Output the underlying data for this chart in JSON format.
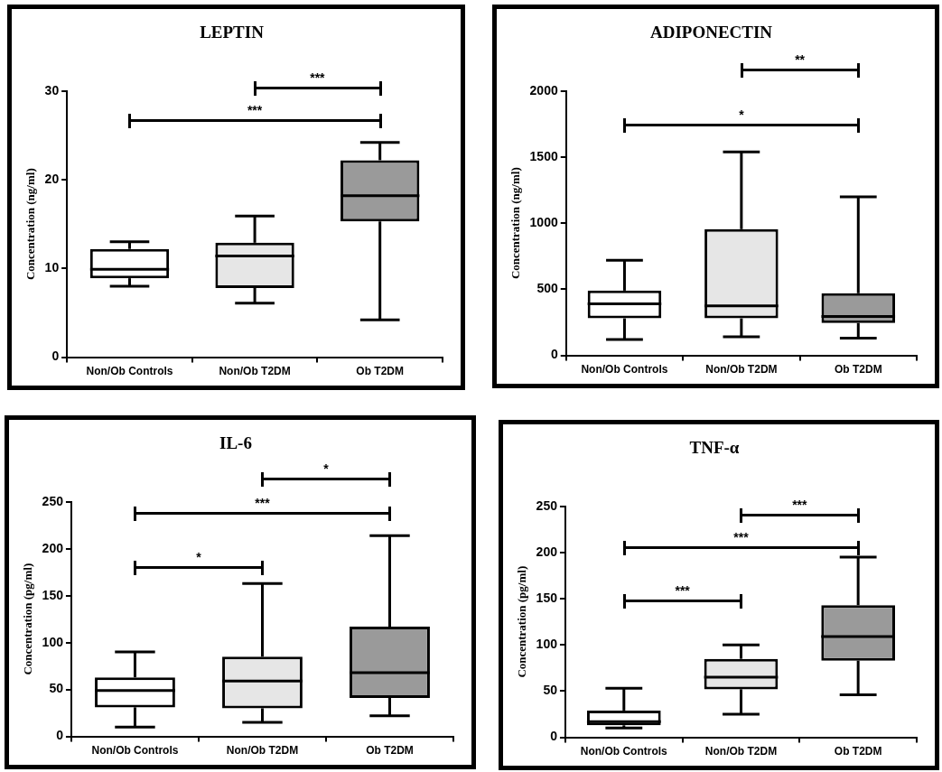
{
  "chart_data": [
    {
      "type": "box",
      "title": "LEPTIN",
      "ylabel": "Concentration (ng/ml)",
      "categories": [
        "Non/Ob Controls",
        "Non/Ob T2DM",
        "Ob T2DM"
      ],
      "ylim": [
        0,
        30
      ],
      "yticks": [
        0,
        10,
        20,
        30
      ],
      "annotations": [
        "***",
        "***"
      ],
      "boxes": [
        {
          "low": 8.0,
          "q1": 8.9,
          "median": 9.9,
          "q3": 12.2,
          "high": 13.0
        },
        {
          "low": 6.1,
          "q1": 7.8,
          "median": 11.4,
          "q3": 12.9,
          "high": 15.9
        },
        {
          "low": 4.2,
          "q1": 15.3,
          "median": 18.2,
          "q3": 22.2,
          "high": 24.2
        }
      ]
    },
    {
      "type": "box",
      "title": "ADIPONECTIN",
      "ylabel": "Concentration (ng/ml)",
      "categories": [
        "Non/Ob Controls",
        "Non/Ob T2DM",
        "Ob T2DM"
      ],
      "ylim": [
        0,
        2000
      ],
      "yticks": [
        0,
        500,
        1000,
        1500,
        2000
      ],
      "annotations": [
        "**",
        "*"
      ],
      "boxes": [
        {
          "low": 120,
          "q1": 280,
          "median": 390,
          "q3": 490,
          "high": 720
        },
        {
          "low": 140,
          "q1": 280,
          "median": 375,
          "q3": 955,
          "high": 1540
        },
        {
          "low": 130,
          "q1": 245,
          "median": 295,
          "q3": 470,
          "high": 1200
        }
      ]
    },
    {
      "type": "box",
      "title": "IL-6",
      "ylabel": "Concentration (pg/ml)",
      "categories": [
        "Non/Ob Controls",
        "Non/Ob T2DM",
        "Ob T2DM"
      ],
      "ylim": [
        0,
        250
      ],
      "yticks": [
        0,
        50,
        100,
        150,
        200,
        250
      ],
      "annotations": [
        "*",
        "***",
        "*"
      ],
      "boxes": [
        {
          "low": 10,
          "q1": 31,
          "median": 49,
          "q3": 63,
          "high": 90
        },
        {
          "low": 15,
          "q1": 30,
          "median": 59,
          "q3": 85,
          "high": 163
        },
        {
          "low": 22,
          "q1": 41,
          "median": 68,
          "q3": 117,
          "high": 214
        }
      ]
    },
    {
      "type": "box",
      "title": "TNF-α",
      "ylabel": "Concentration (pg/ml)",
      "categories": [
        "Non/Ob Controls",
        "Non/Ob T2DM",
        "Ob T2DM"
      ],
      "ylim": [
        0,
        250
      ],
      "yticks": [
        0,
        50,
        100,
        150,
        200,
        250
      ],
      "annotations": [
        "***",
        "***",
        "***"
      ],
      "boxes": [
        {
          "low": 10,
          "q1": 13,
          "median": 17,
          "q3": 29,
          "high": 53
        },
        {
          "low": 25,
          "q1": 52,
          "median": 65,
          "q3": 85,
          "high": 100
        },
        {
          "low": 46,
          "q1": 83,
          "median": 109,
          "q3": 143,
          "high": 195
        }
      ]
    }
  ]
}
